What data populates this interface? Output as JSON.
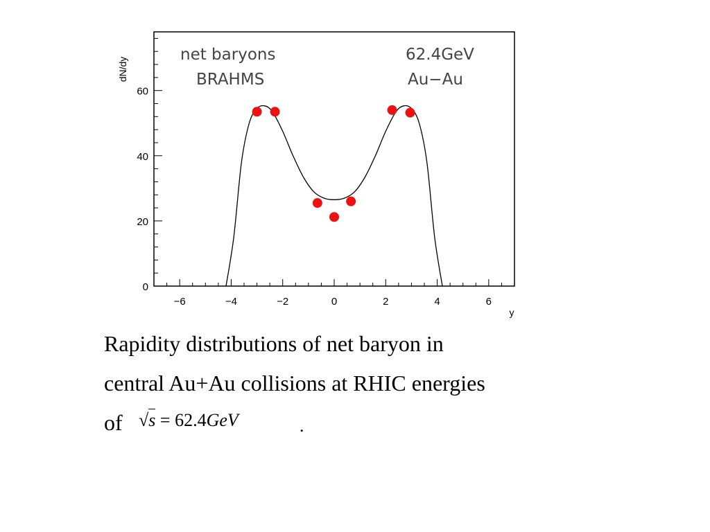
{
  "chart_data": {
    "type": "scatter",
    "ylabel": "dN/dy",
    "xlabel": "y",
    "xlim": [
      -7,
      7
    ],
    "ylim": [
      0,
      78
    ],
    "x_ticks": [
      -6,
      -4,
      -2,
      0,
      2,
      4,
      6
    ],
    "x_tick_labels": [
      "−6",
      "−4",
      "−2",
      "0",
      "2",
      "4",
      "6"
    ],
    "y_ticks": [
      0,
      20,
      40,
      60
    ],
    "y_tick_labels": [
      "0",
      "20",
      "40",
      "60"
    ],
    "annotations": {
      "left_line1": "net baryons",
      "left_line2": "BRAHMS",
      "right_line1": "62.4GeV",
      "right_line2": "Au−Au"
    },
    "points": {
      "x": [
        -3.0,
        -2.3,
        -0.65,
        0.0,
        0.65,
        2.25,
        2.95
      ],
      "y": [
        53.5,
        53.5,
        25.5,
        21.2,
        26.0,
        54.0,
        53.2
      ]
    },
    "curve": {
      "x": [
        -4.2,
        -3.9,
        -3.6,
        -3.3,
        -3.0,
        -2.7,
        -2.4,
        -2.0,
        -1.6,
        -1.2,
        -0.8,
        -0.4,
        0.0,
        0.4,
        0.8,
        1.2,
        1.6,
        2.0,
        2.4,
        2.7,
        3.0,
        3.3,
        3.6,
        3.9,
        4.2
      ],
      "y": [
        0.0,
        15.0,
        38.0,
        50.0,
        54.5,
        55.3,
        53.5,
        47.5,
        40.0,
        33.5,
        29.0,
        27.0,
        26.5,
        27.0,
        29.0,
        33.5,
        40.0,
        47.5,
        53.5,
        55.3,
        54.5,
        50.0,
        38.0,
        15.0,
        0.0
      ]
    },
    "colors": {
      "points": "#ee1111",
      "curve": "#000000",
      "frame": "#000000"
    }
  },
  "caption": {
    "line1": "Rapidity distributions of net baryon in",
    "line2": "central Au+Au collisions at RHIC energies",
    "line3": "of"
  },
  "formula": {
    "radicand": "s",
    "equals": "=",
    "number": "62.4",
    "unit": "GeV",
    "trailing": "."
  }
}
